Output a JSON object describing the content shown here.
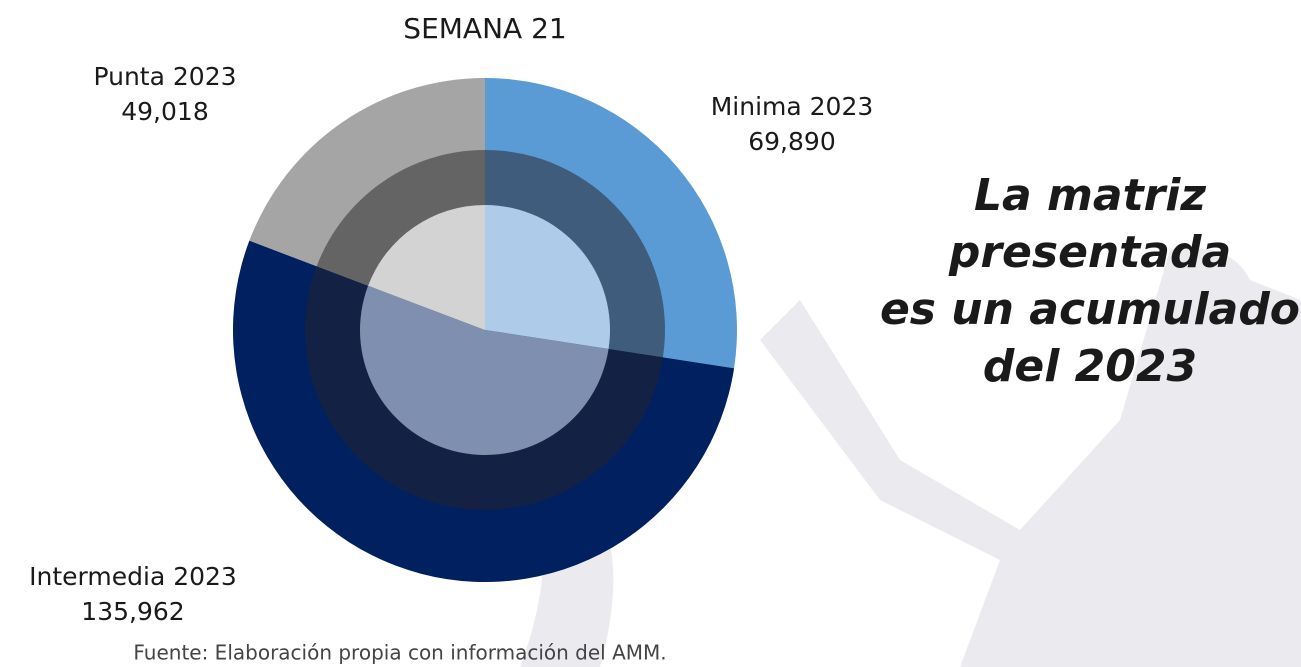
{
  "chart_data": {
    "type": "pie",
    "title": "SEMANA 21",
    "categories": [
      "Minima 2023",
      "Intermedia 2023",
      "Punta 2023"
    ],
    "values": [
      69890,
      135962,
      49018
    ],
    "value_labels": [
      "69,890",
      "135,962",
      "49,018"
    ],
    "ring_colors": [
      [
        "#5b9bd5",
        "#002060",
        "#a5a5a5"
      ],
      [
        "#3f5c7c",
        "#132244",
        "#646464"
      ],
      [
        "#aecbea",
        "#7f8fb0",
        "#d3d3d3"
      ]
    ],
    "annotation": [
      "La matriz",
      "presentada",
      "es un acumulado",
      "del 2023"
    ],
    "source": "Fuente: Elaboración propia con información del AMM."
  }
}
